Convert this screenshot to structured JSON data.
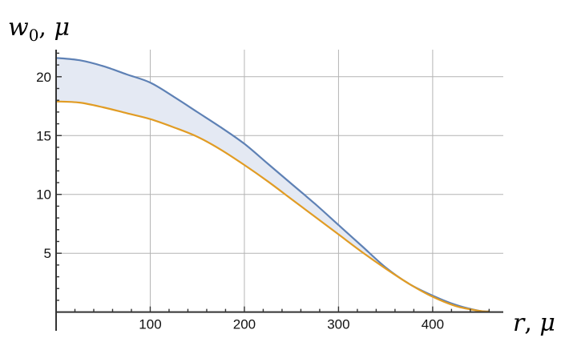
{
  "chart_data": {
    "type": "area",
    "title": "",
    "xlabel": {
      "var": "r",
      "unit": "μ"
    },
    "ylabel": {
      "var": "w",
      "sub": "0",
      "unit": "μ"
    },
    "xlim": [
      0,
      475
    ],
    "ylim": [
      -0.5,
      22.3
    ],
    "x_ticks": [
      100,
      200,
      300,
      400
    ],
    "y_ticks": [
      5,
      10,
      15,
      20
    ],
    "x_minor_step": 20,
    "y_minor_step": 1,
    "grid": true,
    "fill_between_series": [
      0,
      1
    ],
    "series": [
      {
        "color": "#5e81b5",
        "x": [
          0,
          25,
          50,
          75,
          100,
          125,
          150,
          175,
          200,
          225,
          250,
          275,
          300,
          325,
          350,
          375,
          400,
          425,
          450,
          460
        ],
        "y": [
          21.6,
          21.4,
          20.9,
          20.2,
          19.5,
          18.3,
          17.0,
          15.7,
          14.3,
          12.6,
          10.9,
          9.2,
          7.4,
          5.6,
          3.8,
          2.4,
          1.4,
          0.6,
          0.1,
          0.05
        ]
      },
      {
        "color": "#e19c24",
        "x": [
          0,
          25,
          50,
          75,
          100,
          125,
          150,
          175,
          200,
          225,
          250,
          275,
          300,
          325,
          350,
          375,
          400,
          425,
          450,
          460
        ],
        "y": [
          17.9,
          17.8,
          17.4,
          16.9,
          16.4,
          15.7,
          14.9,
          13.8,
          12.5,
          11.1,
          9.6,
          8.1,
          6.6,
          5.1,
          3.7,
          2.4,
          1.3,
          0.5,
          0.1,
          0.05
        ]
      }
    ],
    "fill_color": "#e4e9f3"
  }
}
